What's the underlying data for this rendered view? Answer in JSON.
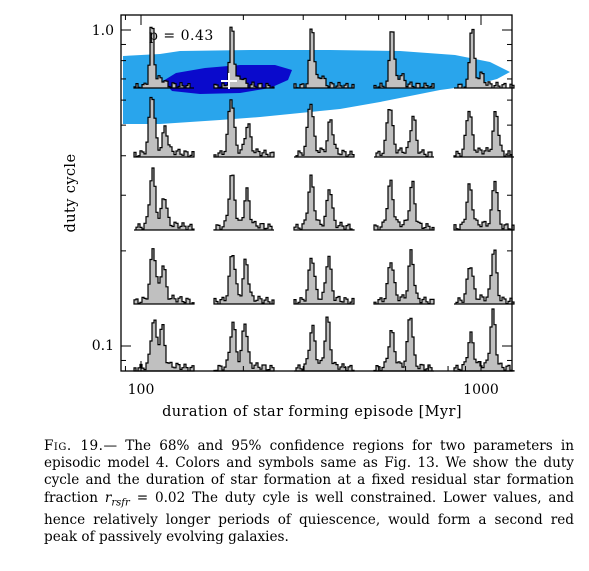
{
  "figure": {
    "annotation": "p = 0.43",
    "xlabel": "duration of star forming episode [Myr]",
    "ylabel": "duty cycle",
    "x_ticks": [
      "100",
      "1000"
    ],
    "y_ticks": [
      "1.0",
      "0.1"
    ],
    "colors": {
      "conf95": "#29a5ec",
      "conf68": "#0a0acc",
      "histogram_fill": "#c0c0c0",
      "marker": "#ffffff"
    },
    "best_fit_marker": "white-cross"
  },
  "chart_data": {
    "type": "scatter",
    "title": "",
    "xlabel": "duration of star forming episode [Myr]",
    "ylabel": "duty cycle",
    "x_scale": "log",
    "y_scale": "log",
    "xlim": [
      80,
      1300
    ],
    "ylim": [
      0.08,
      1.1
    ],
    "grid": false,
    "best_fit": {
      "x": 200,
      "y": 0.72
    },
    "regions": [
      {
        "level": "95%",
        "color": "#29a5ec"
      },
      {
        "level": "68%",
        "color": "#0a0acc"
      }
    ]
  },
  "caption": {
    "fig_label": "Fig. 19.",
    "dash": "—",
    "text_before_math": "The 68% and 95% confidence regions for two parameters in episodic model 4. Colors and symbols same as Fig. 13. We show the duty cycle and the duration of star formation at a fixed residual star formation fraction",
    "math_var": "r",
    "math_sub": "rsfr",
    "math_rest": "= 0.02",
    "text_after_math": "The duty cyle is well constrained. Lower values, and hence relatively longer periods of quiescence, would form a second red peak of passively evolving galaxies."
  }
}
